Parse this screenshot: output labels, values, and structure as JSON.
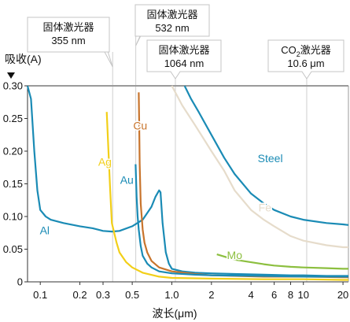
{
  "chart_data": {
    "type": "line",
    "title": "",
    "ylabel": "吸收(A)",
    "xlabel": "波长(μm)",
    "x_scale": "log",
    "xlim": [
      0.08,
      22
    ],
    "ylim": [
      0,
      0.3
    ],
    "grid": false,
    "x_ticks": [
      {
        "value": 0.1,
        "label": "0.1"
      },
      {
        "value": 0.2,
        "label": "0.2"
      },
      {
        "value": 0.3,
        "label": "0.3"
      },
      {
        "value": 0.5,
        "label": "0.5"
      },
      {
        "value": 1.0,
        "label": "1.0"
      },
      {
        "value": 2,
        "label": "2"
      },
      {
        "value": 4,
        "label": "4"
      },
      {
        "value": 6,
        "label": "6"
      },
      {
        "value": 8,
        "label": "8"
      },
      {
        "value": 10,
        "label": "10"
      },
      {
        "value": 20,
        "label": "20"
      }
    ],
    "y_ticks": [
      {
        "value": 0,
        "label": "0"
      },
      {
        "value": 0.05,
        "label": "0.05"
      },
      {
        "value": 0.1,
        "label": "0.10"
      },
      {
        "value": 0.15,
        "label": "0.15"
      },
      {
        "value": 0.2,
        "label": "0.20"
      },
      {
        "value": 0.25,
        "label": "0.25"
      },
      {
        "value": 0.3,
        "label": "0.30"
      }
    ],
    "markers": [
      {
        "x": 0.355,
        "line1": "固体激光器",
        "line2": "355 nm"
      },
      {
        "x": 0.532,
        "line1": "固体激光器",
        "line2": "532 nm"
      },
      {
        "x": 1.064,
        "line1": "固体激光器",
        "line2": "1064 nm"
      },
      {
        "x": 10.6,
        "line1_pre": "CO",
        "line1_sub": "2",
        "line1_post": "激光器",
        "line2": "10.6 μm"
      }
    ],
    "series": [
      {
        "name": "Al",
        "color": "#1a8bb5",
        "x": [
          0.08,
          0.085,
          0.09,
          0.095,
          0.1,
          0.11,
          0.12,
          0.15,
          0.2,
          0.25,
          0.3,
          0.35,
          0.4,
          0.5,
          0.6,
          0.7,
          0.75,
          0.8,
          0.82,
          0.85,
          0.9,
          0.95,
          1.0,
          1.2,
          1.5,
          2,
          3,
          5,
          8,
          10,
          15,
          20,
          22
        ],
        "y": [
          0.3,
          0.28,
          0.2,
          0.14,
          0.11,
          0.1,
          0.095,
          0.09,
          0.085,
          0.082,
          0.078,
          0.077,
          0.078,
          0.085,
          0.095,
          0.115,
          0.13,
          0.14,
          0.137,
          0.09,
          0.045,
          0.028,
          0.02,
          0.016,
          0.014,
          0.013,
          0.012,
          0.011,
          0.01,
          0.01,
          0.009,
          0.009,
          0.009
        ]
      },
      {
        "name": "Ag",
        "color": "#f2cf18",
        "x": [
          0.32,
          0.33,
          0.34,
          0.35,
          0.38,
          0.4,
          0.45,
          0.5,
          0.6,
          0.8,
          1.0,
          2,
          5,
          10,
          20,
          22
        ],
        "y": [
          0.26,
          0.2,
          0.14,
          0.09,
          0.06,
          0.045,
          0.03,
          0.022,
          0.014,
          0.008,
          0.006,
          0.005,
          0.004,
          0.004,
          0.003,
          0.003
        ]
      },
      {
        "name": "Cu",
        "color": "#c8742c",
        "x": [
          0.56,
          0.565,
          0.57,
          0.58,
          0.6,
          0.62,
          0.65,
          0.7,
          0.8,
          1.0,
          1.5,
          2,
          5,
          10,
          20,
          22
        ],
        "y": [
          0.29,
          0.24,
          0.18,
          0.12,
          0.08,
          0.06,
          0.045,
          0.032,
          0.022,
          0.016,
          0.012,
          0.01,
          0.008,
          0.008,
          0.007,
          0.007
        ]
      },
      {
        "name": "Au",
        "color": "#1a8bb5",
        "x": [
          0.53,
          0.54,
          0.55,
          0.56,
          0.58,
          0.6,
          0.65,
          0.7,
          0.8,
          1.0,
          1.5,
          2,
          5,
          10,
          20,
          22
        ],
        "y": [
          0.18,
          0.13,
          0.1,
          0.08,
          0.055,
          0.04,
          0.028,
          0.022,
          0.016,
          0.013,
          0.011,
          0.01,
          0.009,
          0.008,
          0.008,
          0.008
        ]
      },
      {
        "name": "Steel",
        "color": "#1a8bb5",
        "x": [
          1.25,
          1.4,
          1.6,
          2.0,
          2.5,
          3,
          4,
          5,
          6,
          8,
          10,
          15,
          20,
          22
        ],
        "y": [
          0.3,
          0.28,
          0.26,
          0.225,
          0.19,
          0.165,
          0.135,
          0.12,
          0.11,
          0.1,
          0.095,
          0.09,
          0.088,
          0.087
        ]
      },
      {
        "name": "Fe",
        "color": "#e6dccb",
        "x": [
          1.0,
          1.2,
          1.5,
          2,
          2.5,
          3,
          4,
          5,
          6,
          8,
          10,
          15,
          20,
          22
        ],
        "y": [
          0.3,
          0.27,
          0.24,
          0.2,
          0.17,
          0.14,
          0.11,
          0.095,
          0.085,
          0.07,
          0.063,
          0.056,
          0.053,
          0.053
        ]
      },
      {
        "name": "Mo",
        "color": "#8cbf3f",
        "x": [
          2.2,
          3,
          4,
          5,
          6,
          8,
          10,
          15,
          20,
          22
        ],
        "y": [
          0.042,
          0.034,
          0.03,
          0.027,
          0.025,
          0.023,
          0.022,
          0.021,
          0.02,
          0.02
        ]
      }
    ],
    "series_labels": [
      {
        "name": "Al",
        "x": 0.108,
        "y": 0.073
      },
      {
        "name": "Ag",
        "x": 0.31,
        "y": 0.178
      },
      {
        "name": "Cu",
        "x": 0.575,
        "y": 0.233
      },
      {
        "name": "Au",
        "x": 0.455,
        "y": 0.15
      },
      {
        "name": "Steel",
        "x": 5.6,
        "y": 0.183
      },
      {
        "name": "Fe",
        "x": 5.1,
        "y": 0.108
      },
      {
        "name": "Mo",
        "x": 3.0,
        "y": 0.035
      }
    ]
  }
}
